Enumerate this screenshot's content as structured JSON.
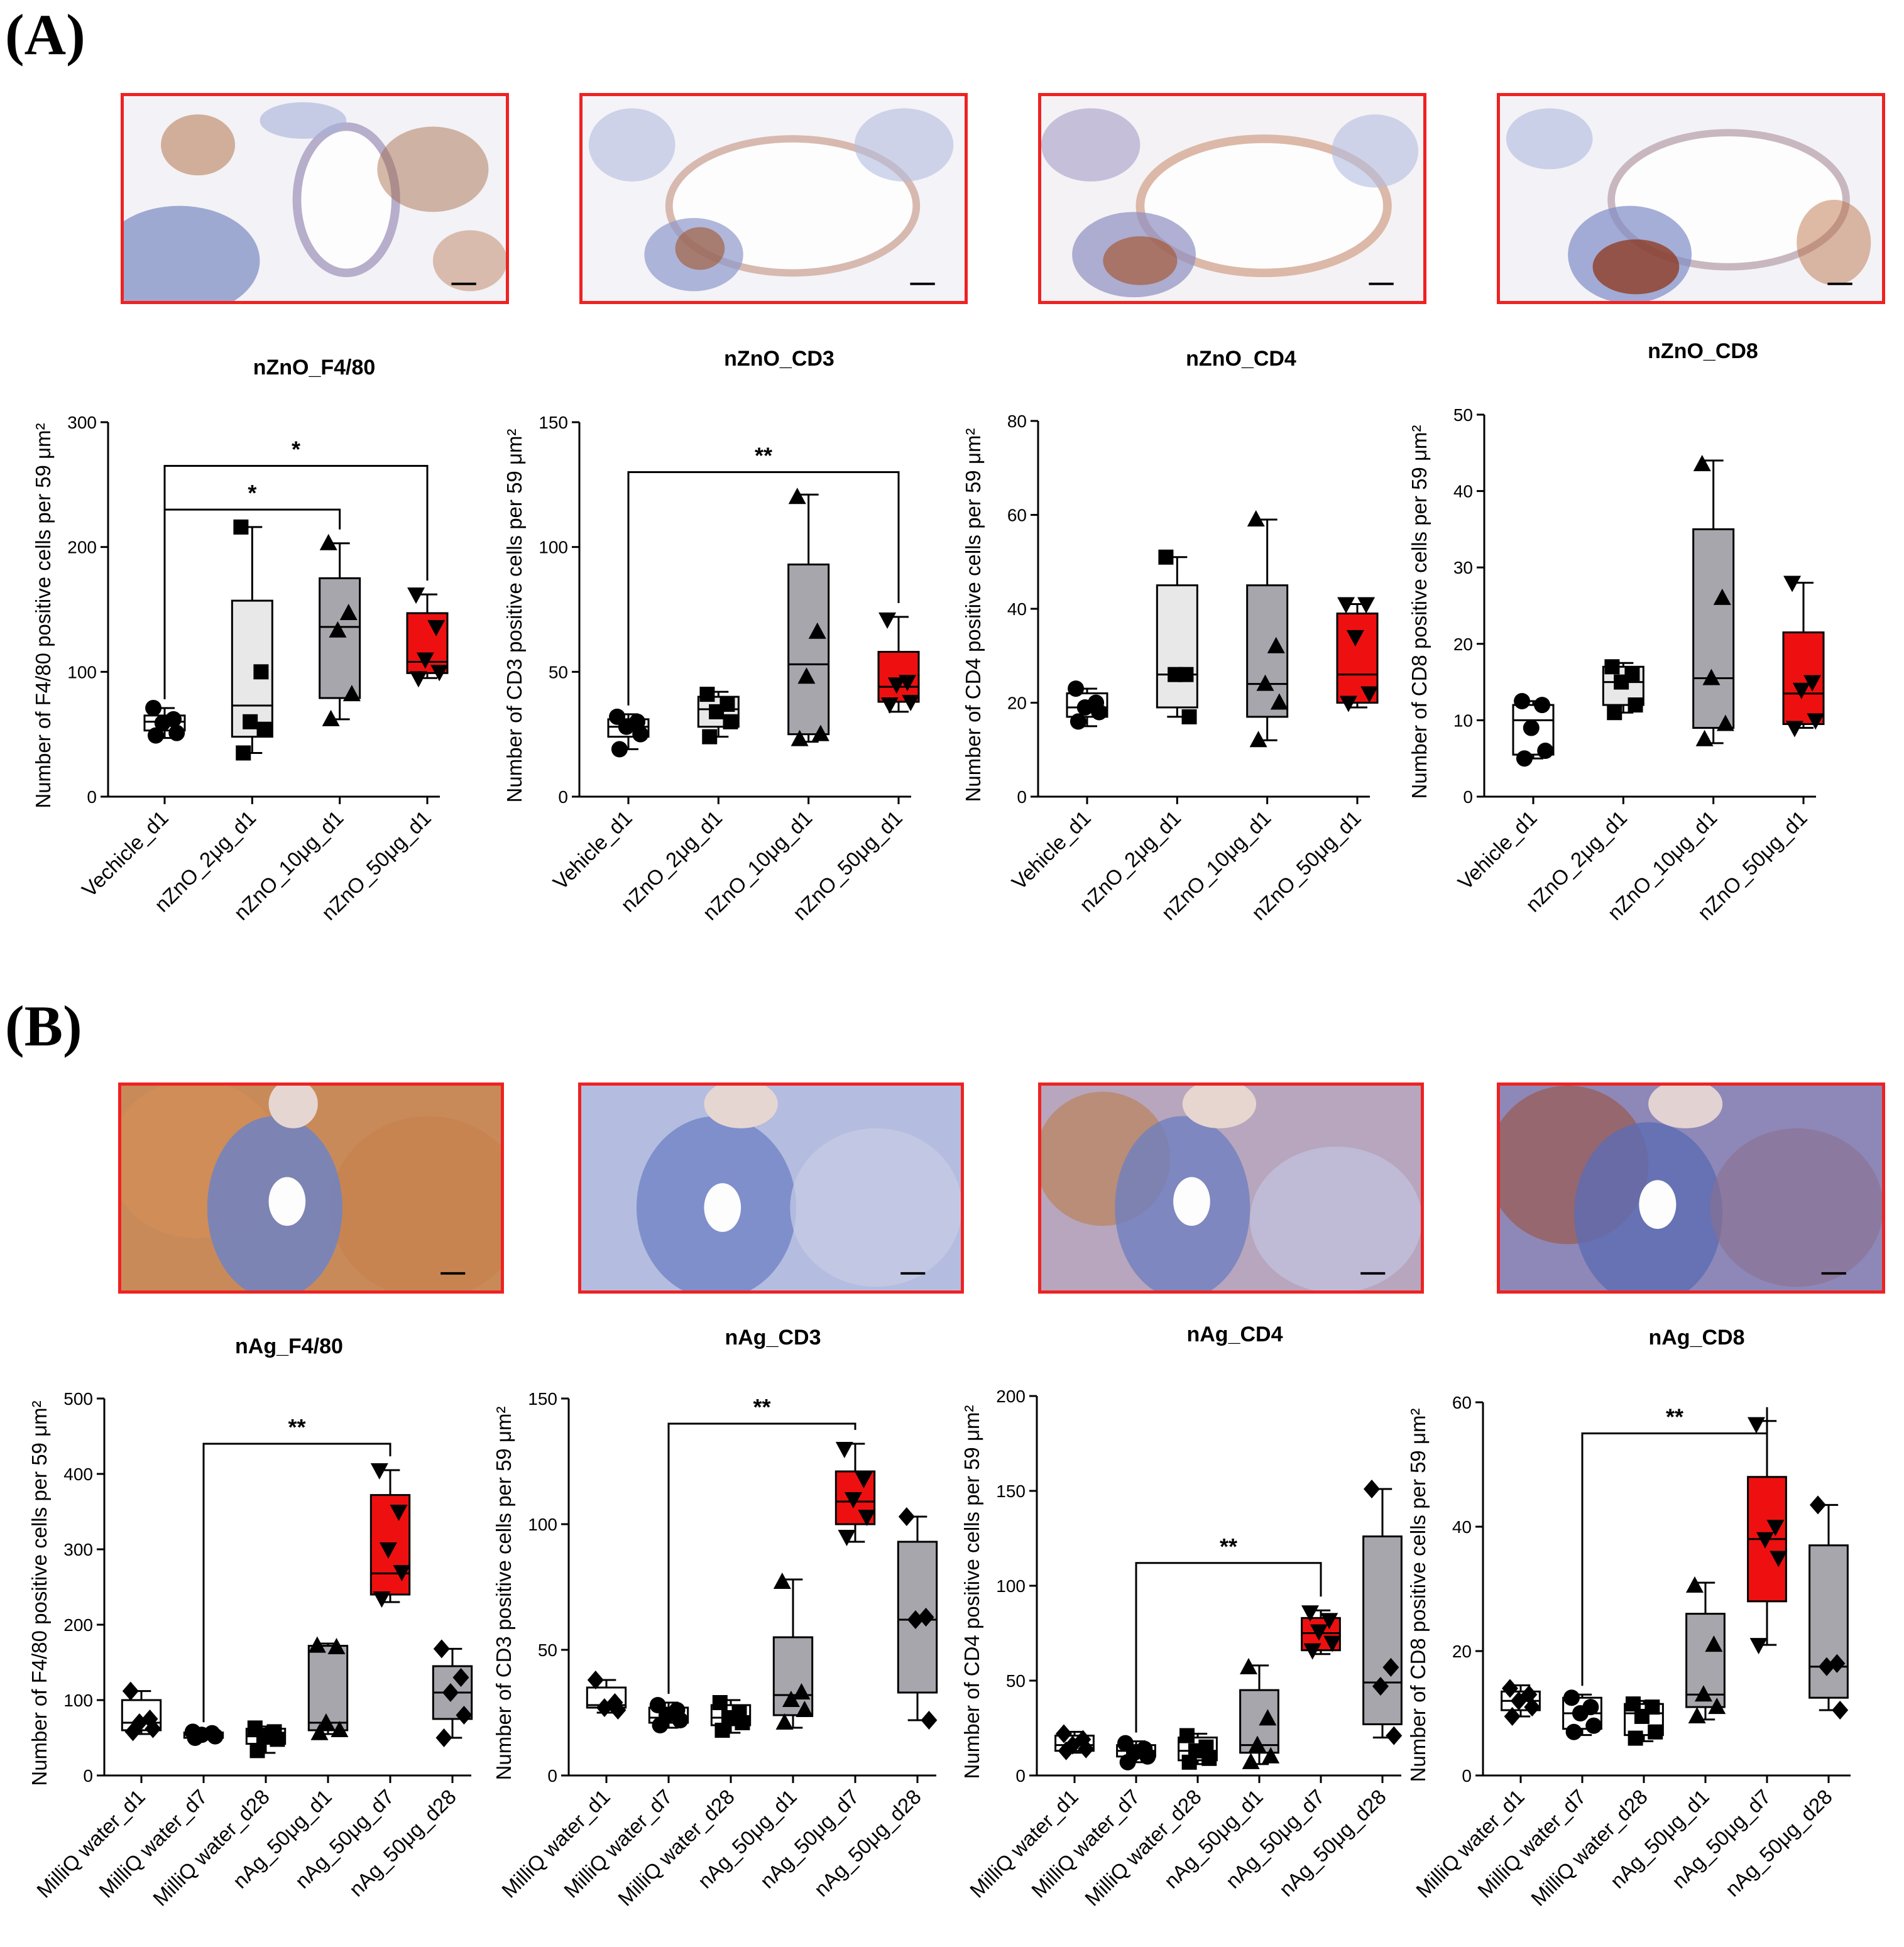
{
  "figure": {
    "panel_a_label": "(A)",
    "panel_b_label": "(B)",
    "ylabel_template": "Number of {marker} positive cells per 59 μm²",
    "colors": {
      "white": "#ffffff",
      "light": "#e8e8e8",
      "gray": "#a6a6ac",
      "red": "#ee1010",
      "frame": "#ee2222"
    }
  },
  "chart_data": [
    {
      "id": "a1",
      "type": "box",
      "title": "nZnO_F4/80",
      "marker": "F4/80",
      "ylabel": "Number of F4/80 positive cells per 59 μm²",
      "ylim": [
        0,
        300
      ],
      "yticks": [
        0,
        100,
        200,
        300
      ],
      "categories": [
        "Vechicle_d1",
        "nZnO_2μg_d1",
        "nZnO_10μg_d1",
        "nZnO_50μg_d1"
      ],
      "boxes": [
        {
          "min": 47,
          "q1": 53,
          "median": 60,
          "q3": 65,
          "max": 71,
          "fill": "white",
          "shape": "circle",
          "points": [
            71,
            62,
            59,
            51,
            49
          ]
        },
        {
          "min": 35,
          "q1": 48,
          "median": 73,
          "q3": 157,
          "max": 216,
          "fill": "light",
          "shape": "square",
          "points": [
            216,
            100,
            60,
            54,
            35
          ]
        },
        {
          "min": 62,
          "q1": 79,
          "median": 136,
          "q3": 175,
          "max": 203,
          "fill": "gray",
          "shape": "triangle",
          "points": [
            203,
            147,
            133,
            82,
            62
          ]
        },
        {
          "min": 95,
          "q1": 99,
          "median": 108,
          "q3": 147,
          "max": 162,
          "fill": "red",
          "shape": "tri-down",
          "points": [
            162,
            136,
            110,
            100,
            95
          ]
        }
      ],
      "significance": [
        {
          "from": 0,
          "to": 3,
          "label": "*",
          "level": 265
        },
        {
          "from": 0,
          "to": 2,
          "label": "*",
          "level": 230
        }
      ]
    },
    {
      "id": "a2",
      "type": "box",
      "title": "nZnO_CD3",
      "marker": "CD3",
      "ylabel": "Number of CD3 positive cells per 59 μm²",
      "ylim": [
        0,
        150
      ],
      "yticks": [
        0,
        50,
        100,
        150
      ],
      "categories": [
        "Vehicle_d1",
        "nZnO_2μg_d1",
        "nZnO_10μg_d1",
        "nZnO_50μg_d1"
      ],
      "boxes": [
        {
          "min": 19,
          "q1": 24,
          "median": 28,
          "q3": 31,
          "max": 33,
          "fill": "white",
          "shape": "circle",
          "points": [
            32,
            30,
            28,
            25,
            19
          ]
        },
        {
          "min": 24,
          "q1": 28,
          "median": 35,
          "q3": 40,
          "max": 42,
          "fill": "light",
          "shape": "square",
          "points": [
            41,
            37,
            34,
            30,
            24
          ]
        },
        {
          "min": 22,
          "q1": 25,
          "median": 53,
          "q3": 93,
          "max": 121,
          "fill": "gray",
          "shape": "triangle",
          "points": [
            120,
            66,
            48,
            25,
            23
          ]
        },
        {
          "min": 34,
          "q1": 38,
          "median": 44,
          "q3": 58,
          "max": 72,
          "fill": "red",
          "shape": "tri-down",
          "points": [
            71,
            46,
            45,
            38,
            37
          ]
        }
      ],
      "significance": [
        {
          "from": 0,
          "to": 3,
          "label": "**",
          "level": 130
        }
      ]
    },
    {
      "id": "a3",
      "type": "box",
      "title": "nZnO_CD4",
      "marker": "CD4",
      "ylabel": "Number of CD4 positive cells per 59 μm²",
      "ylim": [
        0,
        80
      ],
      "yticks": [
        0,
        20,
        40,
        60,
        80
      ],
      "categories": [
        "Vehicle_d1",
        "nZnO_2μg_d1",
        "nZnO_10μg_d1",
        "nZnO_50μg_d1"
      ],
      "boxes": [
        {
          "min": 15,
          "q1": 17,
          "median": 19,
          "q3": 22,
          "max": 23,
          "fill": "white",
          "shape": "circle",
          "points": [
            23,
            20,
            19,
            18,
            16
          ]
        },
        {
          "min": 17,
          "q1": 19,
          "median": 26,
          "q3": 45,
          "max": 51,
          "fill": "light",
          "shape": "square",
          "points": [
            51,
            26,
            26,
            17
          ]
        },
        {
          "min": 12,
          "q1": 17,
          "median": 24,
          "q3": 45,
          "max": 59,
          "fill": "gray",
          "shape": "triangle",
          "points": [
            59,
            32,
            24,
            20,
            12
          ]
        },
        {
          "min": 19,
          "q1": 20,
          "median": 26,
          "q3": 39,
          "max": 41,
          "fill": "red",
          "shape": "tri-down",
          "points": [
            41,
            41,
            34,
            22,
            20
          ]
        }
      ],
      "significance": []
    },
    {
      "id": "a4",
      "type": "box",
      "title": "nZnO_CD8",
      "marker": "CD8",
      "ylabel": "Number of CD8 positive cells per 59 μm²",
      "ylim": [
        0,
        50
      ],
      "yticks": [
        0,
        10,
        20,
        30,
        40,
        50
      ],
      "categories": [
        "Vehicle_d1",
        "nZnO_2μg_d1",
        "nZnO_10μg_d1",
        "nZnO_50μg_d1"
      ],
      "boxes": [
        {
          "min": 5,
          "q1": 5.5,
          "median": 10,
          "q3": 12,
          "max": 12.5,
          "fill": "white",
          "shape": "circle",
          "points": [
            12.5,
            12,
            9,
            6,
            5
          ]
        },
        {
          "min": 11,
          "q1": 12,
          "median": 15,
          "q3": 17,
          "max": 17.5,
          "fill": "light",
          "shape": "square",
          "points": [
            17,
            16,
            15,
            12,
            11
          ]
        },
        {
          "min": 7,
          "q1": 9,
          "median": 15.5,
          "q3": 35,
          "max": 44,
          "fill": "gray",
          "shape": "triangle",
          "points": [
            43.5,
            26,
            15.5,
            9.5,
            7.5
          ]
        },
        {
          "min": 9,
          "q1": 9.5,
          "median": 13.5,
          "q3": 21.5,
          "max": 28,
          "fill": "red",
          "shape": "tri-down",
          "points": [
            28,
            15,
            14,
            10,
            9
          ]
        }
      ],
      "significance": []
    },
    {
      "id": "b1",
      "type": "box",
      "title": "nAg_F4/80",
      "marker": "F4/80",
      "ylabel": "Number of F4/80 positive cells per 59 μm²",
      "ylim": [
        0,
        500
      ],
      "yticks": [
        0,
        100,
        200,
        300,
        400,
        500
      ],
      "categories": [
        "MilliQ water_d1",
        "MilliQ water_d7",
        "MilliQ water_d28",
        "nAg_50μg_d1",
        "nAg_50μg_d7",
        "nAg_50μg_d28"
      ],
      "boxes": [
        {
          "min": 55,
          "q1": 60,
          "median": 70,
          "q3": 100,
          "max": 112,
          "fill": "white",
          "shape": "diamond",
          "points": [
            112,
            75,
            70,
            62,
            58
          ]
        },
        {
          "min": 49,
          "q1": 50,
          "median": 54,
          "q3": 57,
          "max": 59,
          "fill": "white",
          "shape": "circle",
          "points": [
            58,
            56,
            54,
            52,
            50
          ]
        },
        {
          "min": 30,
          "q1": 42,
          "median": 52,
          "q3": 62,
          "max": 65,
          "fill": "white",
          "shape": "square",
          "points": [
            63,
            58,
            52,
            48,
            33
          ]
        },
        {
          "min": 55,
          "q1": 60,
          "median": 70,
          "q3": 172,
          "max": 175,
          "fill": "gray",
          "shape": "triangle",
          "points": [
            172,
            170,
            70,
            60,
            56
          ]
        },
        {
          "min": 230,
          "q1": 240,
          "median": 268,
          "q3": 372,
          "max": 405,
          "fill": "red",
          "shape": "tri-down",
          "points": [
            405,
            350,
            300,
            270,
            235
          ]
        },
        {
          "min": 50,
          "q1": 75,
          "median": 110,
          "q3": 145,
          "max": 168,
          "fill": "gray",
          "shape": "diamond",
          "points": [
            168,
            130,
            110,
            80,
            50
          ]
        }
      ],
      "significance": [
        {
          "from": 1,
          "to": 4,
          "label": "**",
          "level": 440
        }
      ]
    },
    {
      "id": "b2",
      "type": "box",
      "title": "nAg_CD3",
      "marker": "CD3",
      "ylabel": "Number of CD3 positive cells per 59 μm²",
      "ylim": [
        0,
        150
      ],
      "yticks": [
        0,
        50,
        100,
        150
      ],
      "categories": [
        "MilliQ water_d1",
        "MilliQ water_d7",
        "MilliQ water_d28",
        "nAg_50μg_d1",
        "nAg_50μg_d7",
        "nAg_50μg_d28"
      ],
      "boxes": [
        {
          "min": 25,
          "q1": 27,
          "median": 28,
          "q3": 35,
          "max": 38,
          "fill": "white",
          "shape": "diamond",
          "points": [
            38,
            29,
            27,
            26
          ]
        },
        {
          "min": 19,
          "q1": 21,
          "median": 23,
          "q3": 27,
          "max": 29,
          "fill": "white",
          "shape": "circle",
          "points": [
            28,
            26,
            24,
            22,
            20
          ]
        },
        {
          "min": 17,
          "q1": 20,
          "median": 23,
          "q3": 28,
          "max": 30,
          "fill": "white",
          "shape": "square",
          "points": [
            29,
            25,
            23,
            21,
            18
          ]
        },
        {
          "min": 19,
          "q1": 24,
          "median": 32,
          "q3": 55,
          "max": 78,
          "fill": "gray",
          "shape": "triangle",
          "points": [
            77,
            33,
            30,
            26,
            21
          ]
        },
        {
          "min": 93,
          "q1": 100,
          "median": 109,
          "q3": 121,
          "max": 132,
          "fill": "red",
          "shape": "tri-down",
          "points": [
            130,
            118,
            110,
            103,
            95
          ]
        },
        {
          "min": 22,
          "q1": 33,
          "median": 62,
          "q3": 93,
          "max": 103,
          "fill": "gray",
          "shape": "diamond",
          "points": [
            103,
            63,
            62,
            22
          ]
        }
      ],
      "significance": [
        {
          "from": 1,
          "to": 4,
          "label": "**",
          "level": 140
        }
      ]
    },
    {
      "id": "b3",
      "type": "box",
      "title": "nAg_CD4",
      "marker": "CD4",
      "ylabel": "Number of CD4 positive cells per 59 μm²",
      "ylim": [
        0,
        200
      ],
      "yticks": [
        0,
        50,
        100,
        150,
        200
      ],
      "categories": [
        "MilliQ water_d1",
        "MilliQ water_d7",
        "MilliQ water_d28",
        "nAg_50μg_d1",
        "nAg_50μg_d7",
        "nAg_50μg_d28"
      ],
      "boxes": [
        {
          "min": 12,
          "q1": 13,
          "median": 16,
          "q3": 21,
          "max": 23,
          "fill": "white",
          "shape": "diamond",
          "points": [
            22,
            19,
            16,
            14,
            13
          ]
        },
        {
          "min": 7,
          "q1": 10,
          "median": 13,
          "q3": 16,
          "max": 18,
          "fill": "white",
          "shape": "circle",
          "points": [
            17,
            14,
            12,
            10,
            7
          ]
        },
        {
          "min": 6,
          "q1": 8,
          "median": 13,
          "q3": 20,
          "max": 22,
          "fill": "white",
          "shape": "square",
          "points": [
            21,
            15,
            13,
            9,
            7
          ]
        },
        {
          "min": 6,
          "q1": 12,
          "median": 16,
          "q3": 45,
          "max": 58,
          "fill": "gray",
          "shape": "triangle",
          "points": [
            57,
            30,
            16,
            10,
            7
          ]
        },
        {
          "min": 64,
          "q1": 66,
          "median": 75,
          "q3": 83,
          "max": 87,
          "fill": "red",
          "shape": "tri-down",
          "points": [
            86,
            82,
            76,
            70,
            66
          ]
        },
        {
          "min": 20,
          "q1": 27,
          "median": 49,
          "q3": 126,
          "max": 151,
          "fill": "gray",
          "shape": "diamond",
          "points": [
            151,
            57,
            47,
            21
          ]
        }
      ],
      "significance": [
        {
          "from": 1,
          "to": 4,
          "label": "**",
          "level": 112
        }
      ]
    },
    {
      "id": "b4",
      "type": "box",
      "title": "nAg_CD8",
      "marker": "CD8",
      "ylabel": "Number of CD8 positive cells per 59 μm²",
      "ylim": [
        0,
        60
      ],
      "yticks": [
        0,
        20,
        40,
        60
      ],
      "categories": [
        "MilliQ water_d1",
        "MilliQ water_d7",
        "MilliQ water_d28",
        "nAg_50μg_d1",
        "nAg_50μg_d7",
        "nAg_50μg_d28"
      ],
      "boxes": [
        {
          "min": 9.5,
          "q1": 10.5,
          "median": 12,
          "q3": 13.5,
          "max": 14.5,
          "fill": "white",
          "shape": "diamond",
          "points": [
            14,
            13,
            12,
            11,
            9.5
          ]
        },
        {
          "min": 6.5,
          "q1": 7.5,
          "median": 10,
          "q3": 12.5,
          "max": 13,
          "fill": "white",
          "shape": "circle",
          "points": [
            12.5,
            11,
            10,
            8,
            7
          ]
        },
        {
          "min": 5.5,
          "q1": 6.5,
          "median": 10,
          "q3": 11.5,
          "max": 12,
          "fill": "white",
          "shape": "square",
          "points": [
            11.5,
            11,
            9.5,
            7,
            6
          ]
        },
        {
          "min": 9,
          "q1": 11,
          "median": 13,
          "q3": 26,
          "max": 31,
          "fill": "gray",
          "shape": "triangle",
          "points": [
            30.5,
            21,
            13,
            11,
            9.5
          ]
        },
        {
          "min": 21,
          "q1": 28,
          "median": 38,
          "q3": 48,
          "max": 57,
          "fill": "red",
          "shape": "tri-down",
          "points": [
            56.5,
            40,
            38,
            35,
            21
          ]
        },
        {
          "min": 10.5,
          "q1": 12.5,
          "median": 17.5,
          "q3": 37,
          "max": 43.5,
          "fill": "gray",
          "shape": "diamond",
          "points": [
            43.5,
            18,
            17.5,
            10.5
          ]
        }
      ],
      "significance": [
        {
          "from": 1,
          "to": 4,
          "label": "**",
          "level": 55
        }
      ]
    }
  ]
}
